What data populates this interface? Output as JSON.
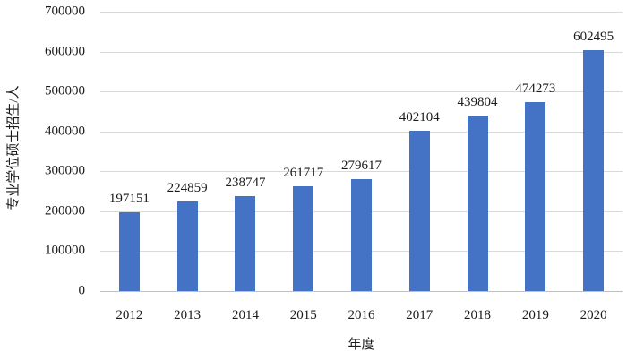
{
  "chart_data": {
    "type": "bar",
    "title": "",
    "xlabel": "年度",
    "ylabel": "专业学位硕士招生/人",
    "categories": [
      "2012",
      "2013",
      "2014",
      "2015",
      "2016",
      "2017",
      "2018",
      "2019",
      "2020"
    ],
    "values": [
      197151,
      224859,
      238747,
      261717,
      279617,
      402104,
      439804,
      474273,
      602495
    ],
    "data_labels": [
      "197151",
      "224859",
      "238747",
      "261717",
      "279617",
      "402104",
      "439804",
      "474273",
      "602495"
    ],
    "ytick_labels": [
      "0",
      "100000",
      "200000",
      "300000",
      "400000",
      "500000",
      "600000",
      "700000"
    ],
    "ylim": [
      0,
      700000
    ],
    "ytick_step": 100000,
    "grid": "horizontal-only",
    "legend": "none",
    "colors": {
      "bar": "#4472C4",
      "gridline": "#D9D9D9",
      "axis_line": "#BFBFBF",
      "text": "#1a1a1a"
    }
  }
}
